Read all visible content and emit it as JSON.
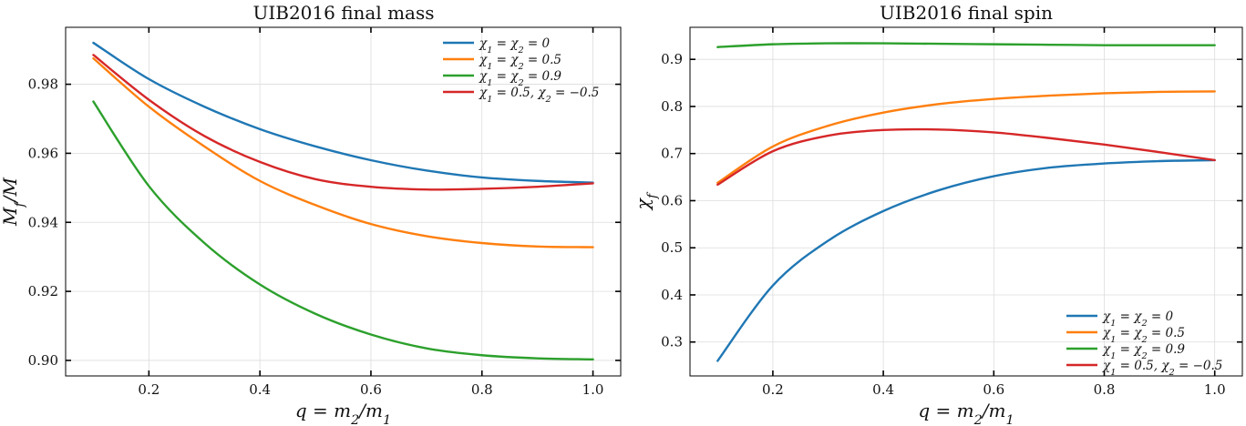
{
  "chart_data": [
    {
      "type": "line",
      "title": "UIB2016 final mass",
      "xlabel": "q = m2/m1",
      "ylabel": "Mf/M",
      "xlim": [
        0.05,
        1.05
      ],
      "ylim": [
        0.8955,
        0.9965
      ],
      "xticks": [
        0.2,
        0.4,
        0.6,
        0.8,
        1.0
      ],
      "xtick_labels": [
        "0.2",
        "0.4",
        "0.6",
        "0.8",
        "1.0"
      ],
      "yticks": [
        0.9,
        0.92,
        0.94,
        0.96,
        0.98
      ],
      "ytick_labels": [
        "0.90",
        "0.92",
        "0.94",
        "0.96",
        "0.98"
      ],
      "grid": true,
      "legend_position": "top-right",
      "x": [
        0.1,
        0.2,
        0.3,
        0.4,
        0.5,
        0.6,
        0.7,
        0.8,
        0.9,
        1.0
      ],
      "series": [
        {
          "name": "χ1 = χ2 = 0",
          "color": "#1f77b4",
          "values": [
            0.992,
            0.9815,
            0.9735,
            0.967,
            0.962,
            0.958,
            0.955,
            0.953,
            0.952,
            0.9515
          ]
        },
        {
          "name": "χ1 = χ2 = 0.5",
          "color": "#ff7f0e",
          "values": [
            0.9875,
            0.9735,
            0.962,
            0.952,
            0.945,
            0.9395,
            0.936,
            0.934,
            0.933,
            0.9328
          ]
        },
        {
          "name": "χ1 = χ2 = 0.9",
          "color": "#2ca02c",
          "values": [
            0.975,
            0.9505,
            0.934,
            0.922,
            0.9135,
            0.9075,
            0.9035,
            0.9015,
            0.9006,
            0.9003
          ]
        },
        {
          "name": "χ1 = 0.5, χ2 = −0.5",
          "color": "#d62728",
          "values": [
            0.9885,
            0.9755,
            0.965,
            0.9575,
            0.9525,
            0.9503,
            0.9495,
            0.9497,
            0.9503,
            0.9513
          ]
        }
      ]
    },
    {
      "type": "line",
      "title": "UIB2016 final spin",
      "xlabel": "q = m2/m1",
      "ylabel": "χf",
      "xlim": [
        0.05,
        1.05
      ],
      "ylim": [
        0.228,
        0.968
      ],
      "xticks": [
        0.2,
        0.4,
        0.6,
        0.8,
        1.0
      ],
      "xtick_labels": [
        "0.2",
        "0.4",
        "0.6",
        "0.8",
        "1.0"
      ],
      "yticks": [
        0.3,
        0.4,
        0.5,
        0.6,
        0.7,
        0.8,
        0.9
      ],
      "ytick_labels": [
        "0.3",
        "0.4",
        "0.5",
        "0.6",
        "0.7",
        "0.8",
        "0.9"
      ],
      "grid": true,
      "legend_position": "bottom-right",
      "x": [
        0.1,
        0.2,
        0.3,
        0.4,
        0.5,
        0.6,
        0.7,
        0.8,
        0.9,
        1.0
      ],
      "series": [
        {
          "name": "χ1 = χ2 = 0",
          "color": "#1f77b4",
          "values": [
            0.26,
            0.42,
            0.515,
            0.578,
            0.622,
            0.652,
            0.67,
            0.679,
            0.684,
            0.686
          ]
        },
        {
          "name": "χ1 = χ2 = 0.5",
          "color": "#ff7f0e",
          "values": [
            0.638,
            0.715,
            0.759,
            0.787,
            0.805,
            0.816,
            0.823,
            0.828,
            0.831,
            0.832
          ]
        },
        {
          "name": "χ1 = χ2 = 0.9",
          "color": "#2ca02c",
          "values": [
            0.926,
            0.932,
            0.934,
            0.934,
            0.933,
            0.932,
            0.931,
            0.93,
            0.93,
            0.93
          ]
        },
        {
          "name": "χ1 = 0.5, χ2 = −0.5",
          "color": "#d62728",
          "values": [
            0.634,
            0.705,
            0.738,
            0.75,
            0.751,
            0.745,
            0.733,
            0.719,
            0.703,
            0.686
          ]
        }
      ]
    }
  ]
}
